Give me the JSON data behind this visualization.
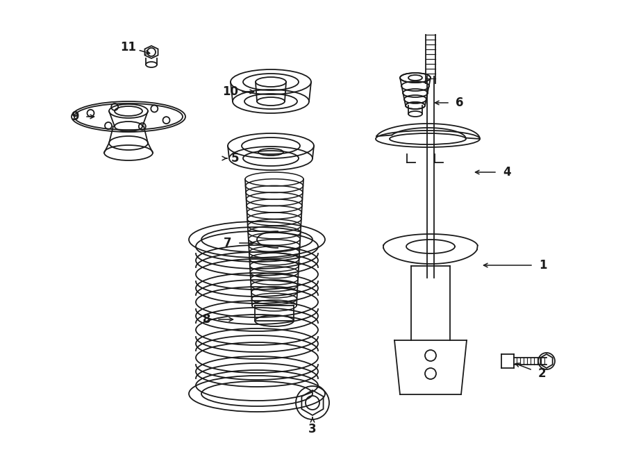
{
  "background_color": "#ffffff",
  "line_color": "#1a1a1a",
  "label_color": "#1a1a1a",
  "fig_width": 9.0,
  "fig_height": 6.61,
  "dpi": 100
}
